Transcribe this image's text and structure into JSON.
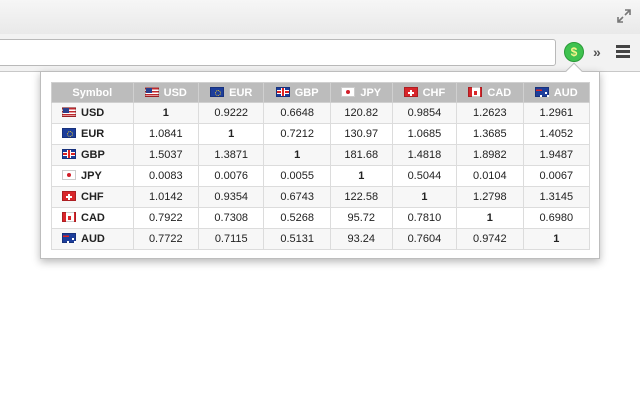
{
  "browser": {
    "toolbar": {
      "omnibox_value": "",
      "extension_label": "$",
      "overflow_label": "»"
    },
    "icons": {
      "restore": "restore-window-icon",
      "extension": "dollar-icon",
      "overflow": "double-chevron-right-icon",
      "menu": "hamburger-menu-icon"
    }
  },
  "colors": {
    "header_bg": "#bcbcbc",
    "extension_green": "#3fc24f"
  },
  "popup": {
    "table": {
      "header_symbol": "Symbol",
      "columns": [
        "USD",
        "EUR",
        "GBP",
        "JPY",
        "CHF",
        "CAD",
        "AUD"
      ],
      "rows": [
        {
          "symbol": "USD",
          "values": [
            "1",
            "0.9222",
            "0.6648",
            "120.82",
            "0.9854",
            "1.2623",
            "1.2961"
          ]
        },
        {
          "symbol": "EUR",
          "values": [
            "1.0841",
            "1",
            "0.7212",
            "130.97",
            "1.0685",
            "1.3685",
            "1.4052"
          ]
        },
        {
          "symbol": "GBP",
          "values": [
            "1.5037",
            "1.3871",
            "1",
            "181.68",
            "1.4818",
            "1.8982",
            "1.9487"
          ]
        },
        {
          "symbol": "JPY",
          "values": [
            "0.0083",
            "0.0076",
            "0.0055",
            "1",
            "0.5044",
            "0.0104",
            "0.0067"
          ]
        },
        {
          "symbol": "CHF",
          "values": [
            "1.0142",
            "0.9354",
            "0.6743",
            "122.58",
            "1",
            "1.2798",
            "1.3145"
          ]
        },
        {
          "symbol": "CAD",
          "values": [
            "0.7922",
            "0.7308",
            "0.5268",
            "95.72",
            "0.7810",
            "1",
            "0.6980"
          ]
        },
        {
          "symbol": "AUD",
          "values": [
            "0.7722",
            "0.7115",
            "0.5131",
            "93.24",
            "0.7604",
            "0.9742",
            "1"
          ]
        }
      ]
    }
  }
}
